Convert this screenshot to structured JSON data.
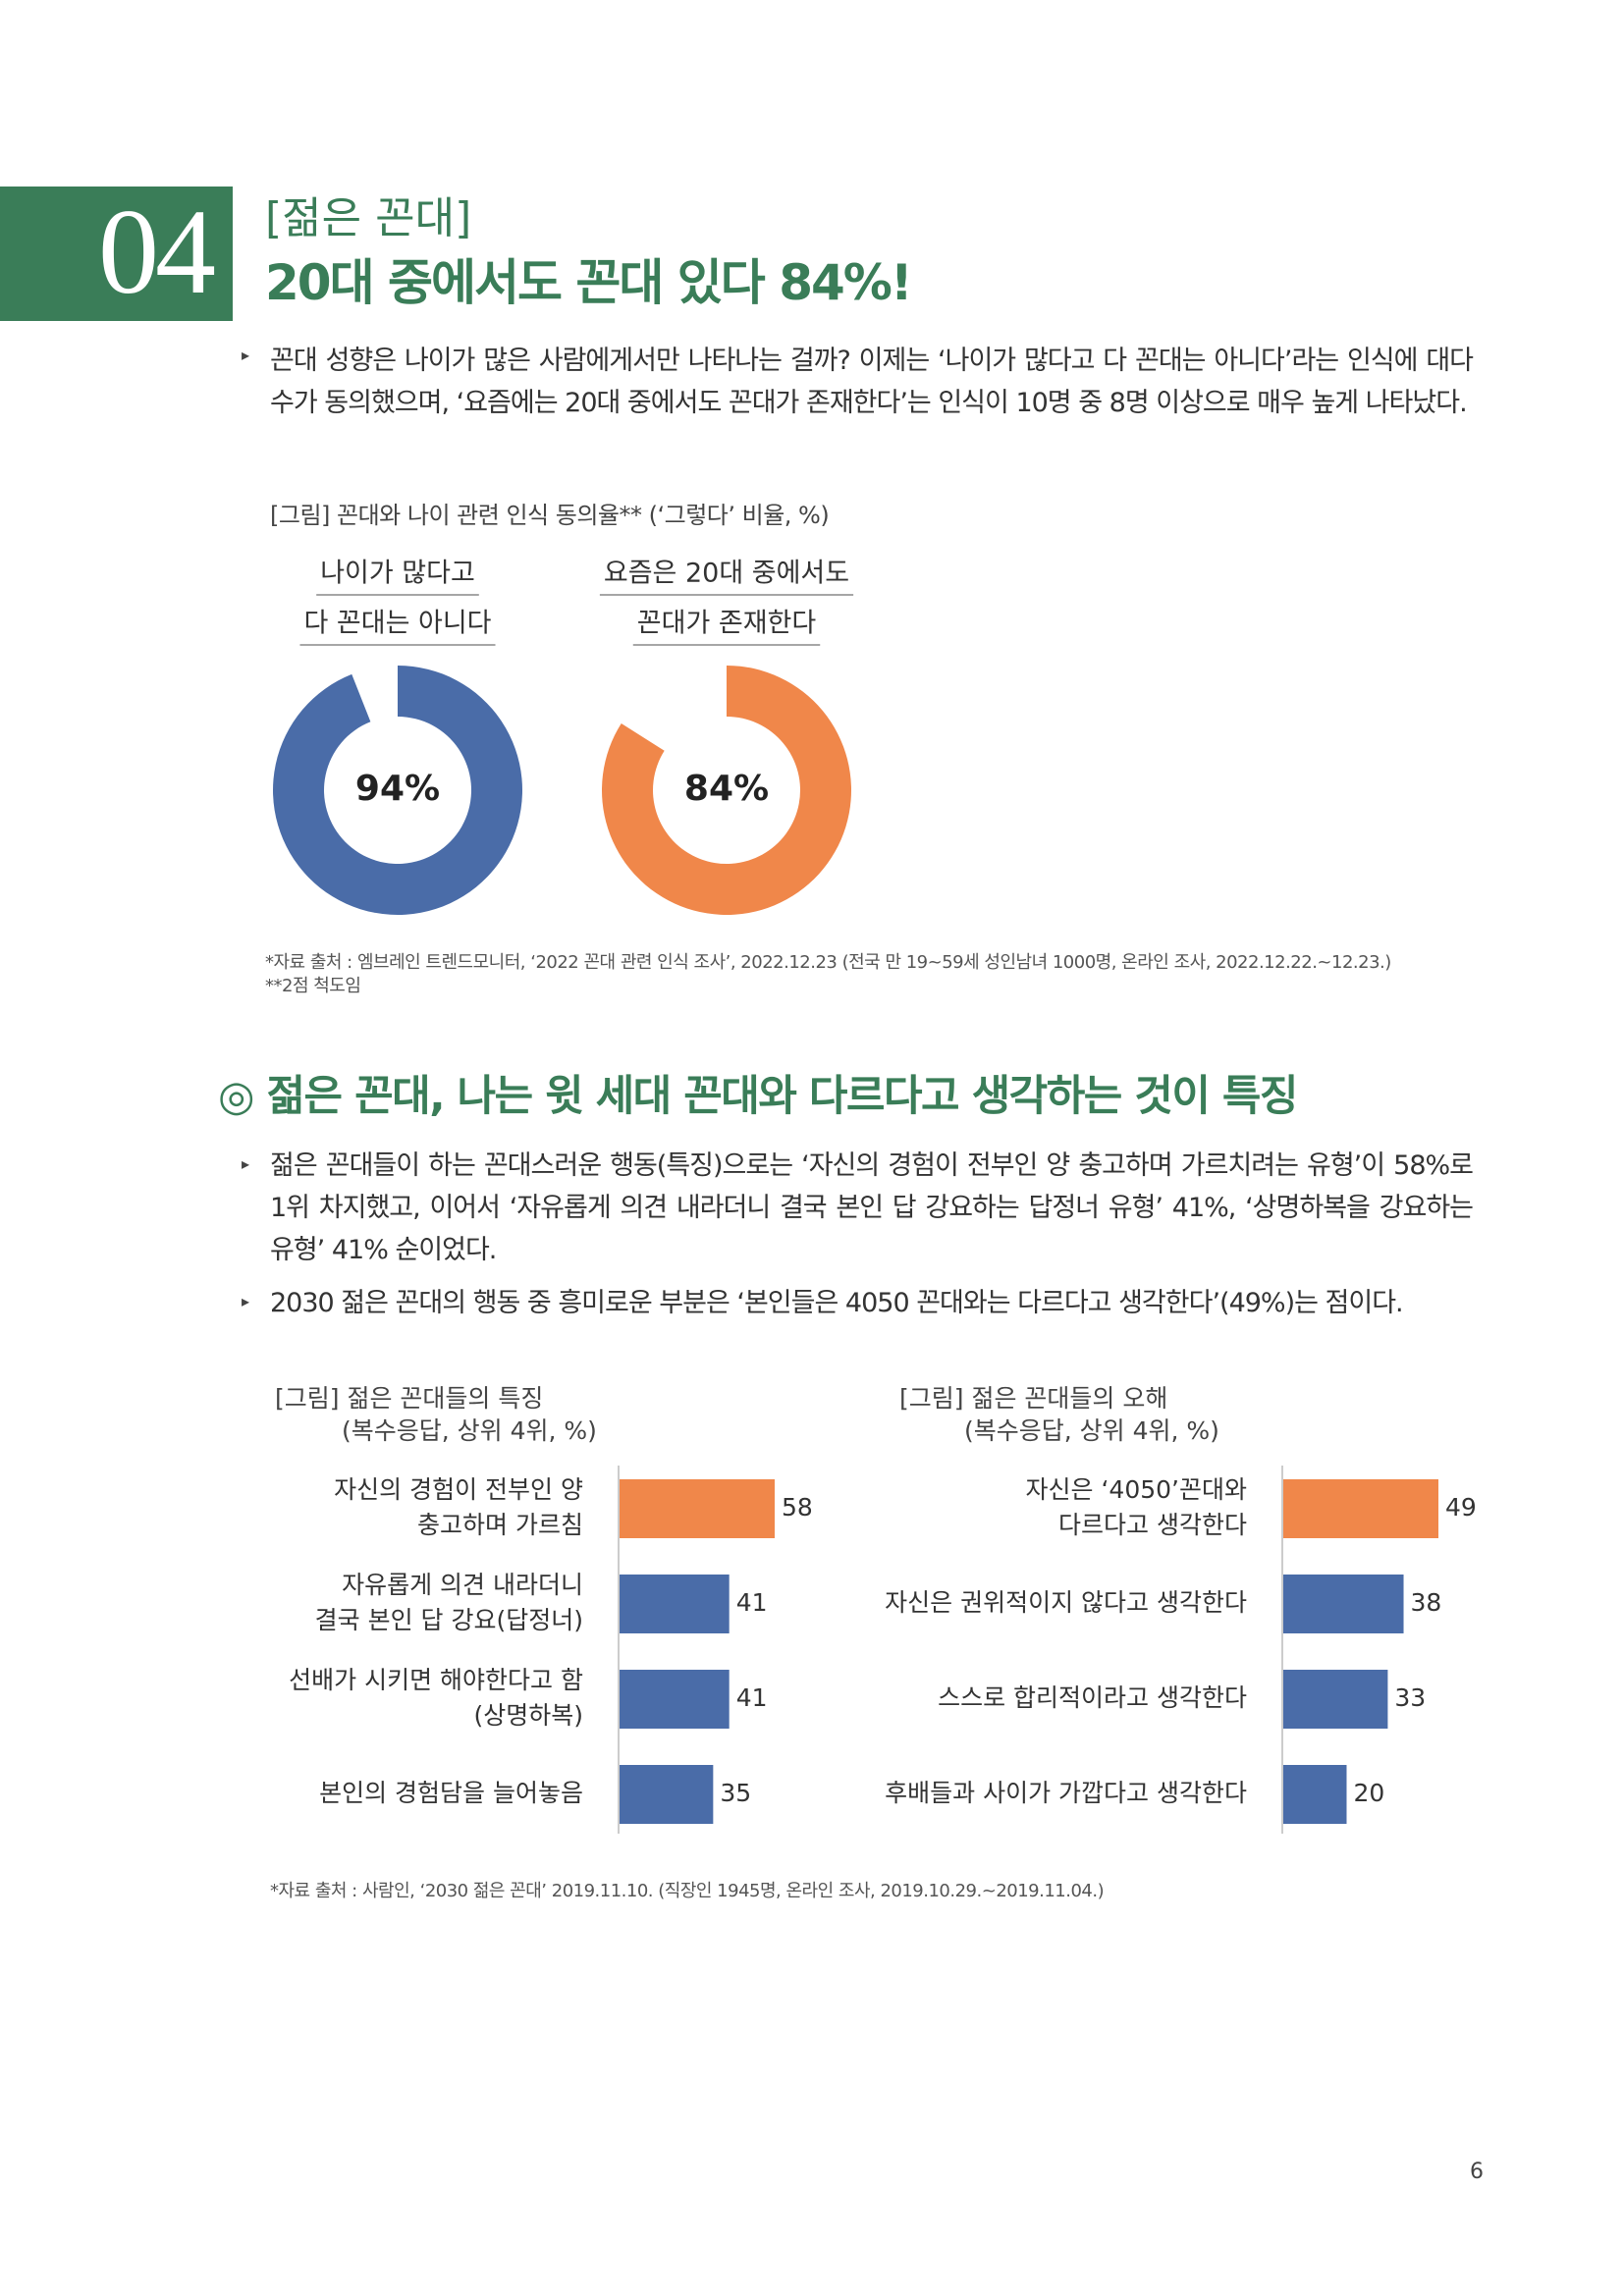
{
  "header": {
    "number": "04",
    "tag": "[젊은 꼰대]",
    "title": "20대 중에서도 꼰대 있다 84%!"
  },
  "intro": "꼰대 성향은 나이가 많은 사람에게서만 나타나는 걸까? 이제는 ‘나이가 많다고 다 꼰대는 아니다’라는 인식에 대다수가 동의했으며, ‘요즘에는 20대 중에서도 꼰대가 존재한다’는 인식이 10명 중 8명 이상으로 매우 높게 나타났다.",
  "figure1": {
    "caption": "[그림] 꼰대와 나이 관련 인식 동의율** (‘그렇다’ 비율, %)",
    "source": "*자료 출처 : 엠브레인 트렌드모니터, ‘2022 꼰대 관련 인식 조사’, 2022.12.23 (전국 만 19~59세 성인남녀 1000명, 온라인 조사, 2022.12.22.~12.23.)",
    "note": "**2점 척도임"
  },
  "chart_data": [
    {
      "type": "pie",
      "title": [
        "나이가 많다고",
        "다 꼰대는 아니다"
      ],
      "values": [
        94
      ],
      "value_labels": [
        "94%"
      ],
      "color": "#4a6ca8"
    },
    {
      "type": "pie",
      "title": [
        "요즘은 20대 중에서도",
        "꼰대가 존재한다"
      ],
      "values": [
        84
      ],
      "value_labels": [
        "84%"
      ],
      "color": "#f0874a"
    },
    {
      "type": "bar",
      "title": [
        "[그림] 젊은 꼰대들의 특징",
        "(복수응답, 상위 4위, %)"
      ],
      "categories": [
        [
          "자신의 경험이 전부인 양",
          "충고하며 가르침"
        ],
        [
          "자유롭게 의견 내라더니",
          "결국 본인 답 강요(답정너)"
        ],
        [
          "선배가 시키면 해야한다고 함",
          "(상명하복)"
        ],
        [
          "본인의 경험담을 늘어놓음"
        ]
      ],
      "values": [
        58,
        41,
        41,
        35
      ],
      "colors": [
        "#f0874a",
        "#4a6ca8",
        "#4a6ca8",
        "#4a6ca8"
      ]
    },
    {
      "type": "bar",
      "title": [
        "[그림] 젊은 꼰대들의 오해",
        "(복수응답, 상위 4위, %)"
      ],
      "categories": [
        [
          "자신은 ‘4050’꼰대와",
          "다르다고 생각한다"
        ],
        [
          "자신은 권위적이지 않다고 생각한다"
        ],
        [
          "스스로 합리적이라고 생각한다"
        ],
        [
          "후배들과 사이가 가깝다고 생각한다"
        ]
      ],
      "values": [
        49,
        38,
        33,
        20
      ],
      "colors": [
        "#f0874a",
        "#4a6ca8",
        "#4a6ca8",
        "#4a6ca8"
      ]
    }
  ],
  "section": {
    "heading": "◎ 젊은 꼰대, 나는 윗 세대 꼰대와 다르다고 생각하는 것이 특징",
    "bullets": [
      "젊은 꼰대들이 하는 꼰대스러운 행동(특징)으로는 ‘자신의 경험이 전부인 양 충고하며 가르치려는 유형’이 58%로 1위 차지했고, 이어서 ‘자유롭게 의견 내라더니 결국 본인 답 강요하는 답정너 유형’ 41%, ‘상명하복을 강요하는 유형’ 41% 순이었다.",
      "2030 젊은 꼰대의 행동 중 흥미로운 부분은 ‘본인들은 4050 꼰대와는 다르다고 생각한다’(49%)는 점이다."
    ]
  },
  "figure2": {
    "source": "*자료 출처 : 사람인, ‘2030 젊은 꼰대’ 2019.11.10. (직장인 1945명, 온라인 조사, 2019.10.29.~2019.11.04.)"
  },
  "page_number": "6"
}
